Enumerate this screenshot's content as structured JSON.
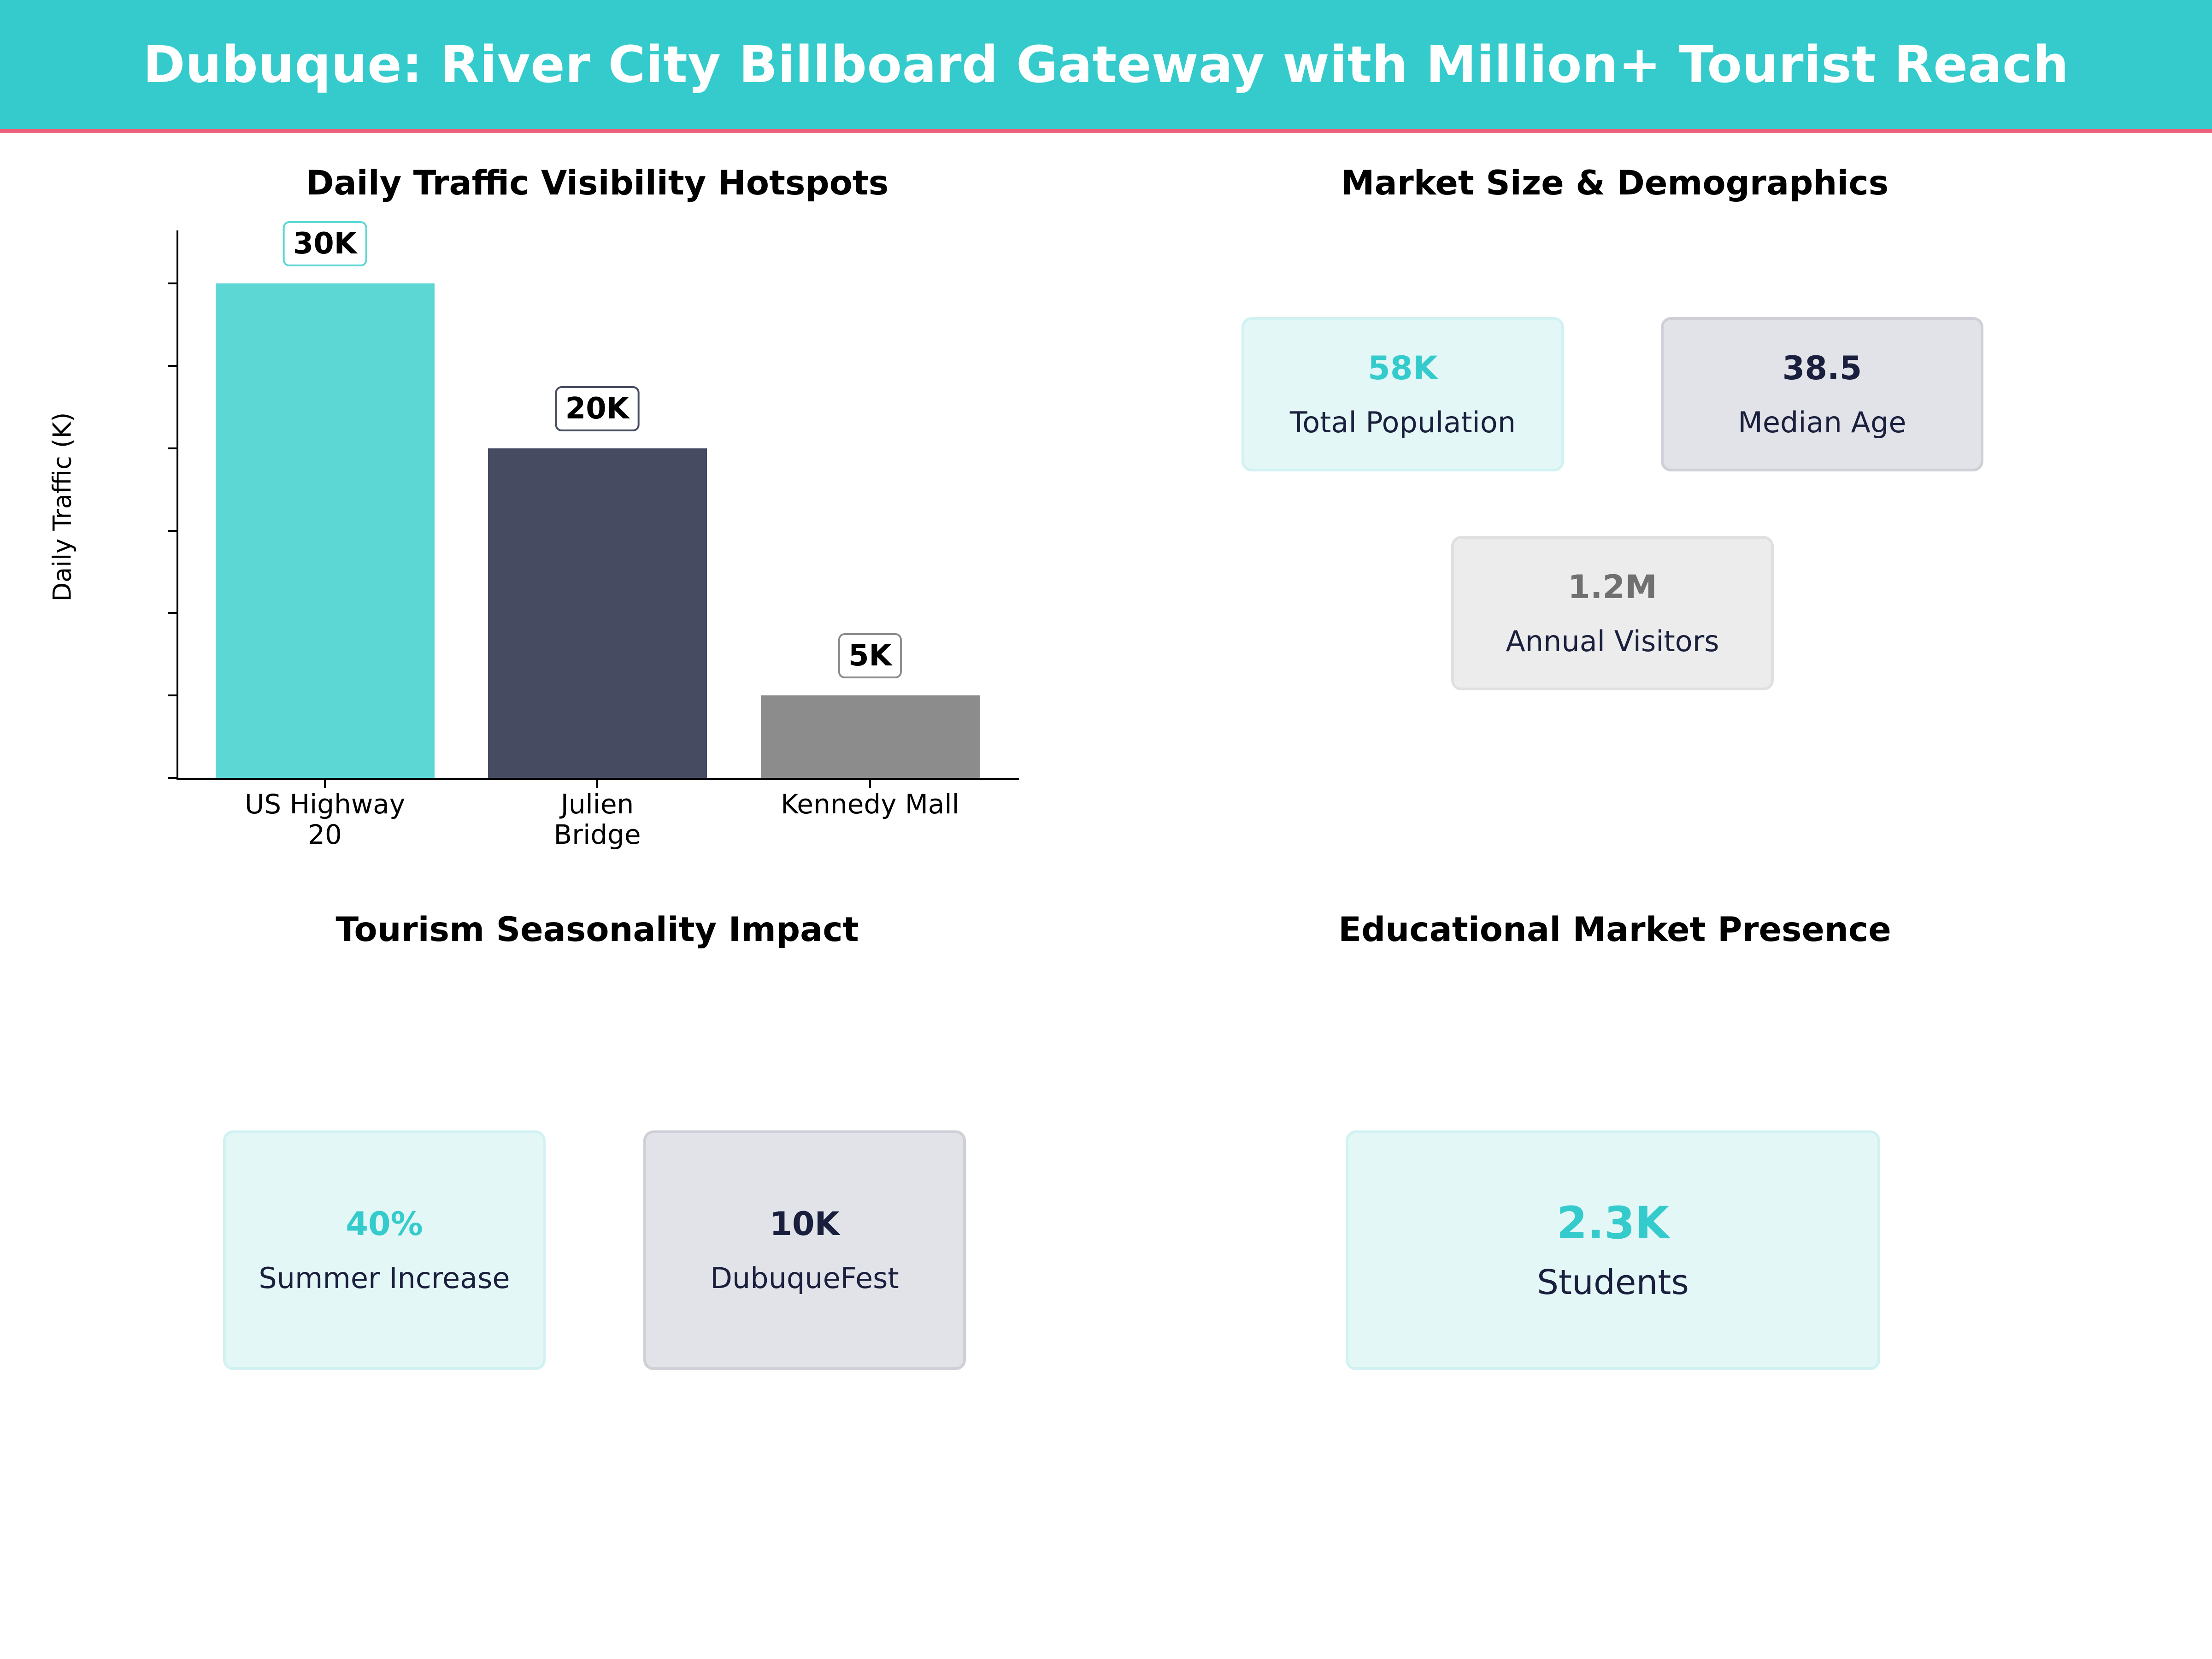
{
  "header": {
    "title": "Dubuque: River City Billboard Gateway with Million+ Tourist Reach"
  },
  "colors": {
    "header_bg": "#35cbcc",
    "header_stripe": "#ee6079",
    "accent_teal": "#35cbcc",
    "navy": "#1a1f3d",
    "grey": "#707070"
  },
  "panels": {
    "traffic": {
      "title": "Daily Traffic Visibility Hotspots"
    },
    "market": {
      "title": "Market Size & Demographics",
      "cards": [
        {
          "value": "58K",
          "label": "Total Population",
          "value_color": "#35cbcc"
        },
        {
          "value": "38.5",
          "label": "Median Age",
          "value_color": "#1a1f3d"
        },
        {
          "value": "1.2M",
          "label": "Annual Visitors",
          "value_color": "#707070"
        }
      ]
    },
    "tourism": {
      "title": "Tourism Seasonality Impact",
      "cards": [
        {
          "value": "40%",
          "label": "Summer Increase",
          "value_color": "#35cbcc"
        },
        {
          "value": "10K",
          "label": "DubuqueFest",
          "value_color": "#1a1f3d"
        }
      ]
    },
    "education": {
      "title": "Educational Market Presence",
      "cards": [
        {
          "value": "2.3K",
          "label": "Students",
          "value_color": "#35cbcc"
        }
      ]
    }
  },
  "chart_data": {
    "type": "bar",
    "title": "Daily Traffic Visibility Hotspots",
    "categories": [
      "US Highway\n20",
      "Julien\nBridge",
      "Kennedy Mall"
    ],
    "values": [
      30000,
      20000,
      5000
    ],
    "value_labels": [
      "30K",
      "20K",
      "5K"
    ],
    "colors": [
      "#5dd7d4",
      "#464b61",
      "#8c8c8c"
    ],
    "label_border_colors": [
      "#5dd7d4",
      "#464b61",
      "#8c8c8c"
    ],
    "xlabel": "",
    "ylabel": "Daily Traffic (K)",
    "ylim": [
      0,
      33000
    ],
    "yticks": [
      0,
      5000,
      10000,
      15000,
      20000,
      25000,
      30000
    ],
    "ytick_labels": [
      "0",
      "5000",
      "10000",
      "15000",
      "20000",
      "25000",
      "30000"
    ],
    "grid": false,
    "legend": null
  }
}
